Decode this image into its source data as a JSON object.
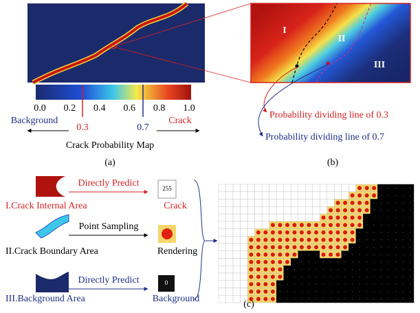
{
  "panel_a": {
    "colorbar_ticks": [
      "0.0",
      "0.2",
      "0.4",
      "0.6",
      "0.8",
      "1.0"
    ],
    "left_label": "Background",
    "right_label": "Crack",
    "threshold_low": "0.3",
    "threshold_high": "0.7",
    "caption": "Crack Probability Map",
    "tag": "(a)"
  },
  "panel_b": {
    "regions": [
      "I",
      "II",
      "III"
    ],
    "line_low": "Probability dividing line of 0.3",
    "line_high": "Probability dividing line of 0.7",
    "tag": "(b)"
  },
  "panel_c": {
    "rows": [
      {
        "action": "Directly Predict",
        "area": "I.Crack Internal Area",
        "box": "255",
        "result": "Crack"
      },
      {
        "action": "Point Sampling",
        "area": "II.Crack Boundary Area",
        "result": "Rendering"
      },
      {
        "action": "Directly Predict",
        "area": "III.Background Area",
        "box": "0",
        "result": "Background"
      }
    ],
    "tag": "(c)"
  }
}
